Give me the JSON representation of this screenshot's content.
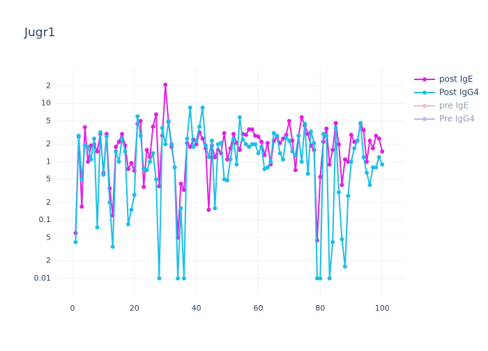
{
  "chart_data": {
    "type": "line",
    "title": "Jugr1",
    "log_y": true,
    "grid": true,
    "legend": "right",
    "x": [
      1,
      2,
      3,
      4,
      5,
      6,
      7,
      8,
      9,
      10,
      11,
      12,
      13,
      14,
      15,
      16,
      17,
      18,
      19,
      20,
      21,
      22,
      23,
      24,
      25,
      26,
      27,
      28,
      29,
      30,
      31,
      32,
      33,
      34,
      35,
      36,
      37,
      38,
      39,
      40,
      41,
      42,
      43,
      44,
      45,
      46,
      47,
      48,
      49,
      50,
      51,
      52,
      53,
      54,
      55,
      56,
      57,
      58,
      59,
      60,
      61,
      62,
      63,
      64,
      65,
      66,
      67,
      68,
      69,
      70,
      71,
      72,
      73,
      74,
      75,
      76,
      77,
      78,
      79,
      80,
      81,
      82,
      83,
      84,
      85,
      86,
      87,
      88,
      89,
      90,
      91,
      92,
      93,
      94,
      95,
      96,
      97,
      98,
      99,
      100
    ],
    "series": [
      {
        "name": "post IgE",
        "color": "#e31fe3",
        "values": [
          0.06,
          2.7,
          0.17,
          3.9,
          1.0,
          1.9,
          2.0,
          1.5,
          3.0,
          0.65,
          3.0,
          0.35,
          0.12,
          1.8,
          2.2,
          3.0,
          1.9,
          0.75,
          0.95,
          0.7,
          4.5,
          5.0,
          0.37,
          1.6,
          1.2,
          4.0,
          6.5,
          0.38,
          2.8,
          21,
          4.8,
          1.8,
          0.8,
          0.05,
          0.42,
          0.33,
          2.1,
          1.8,
          2.4,
          2.0,
          3.2,
          2.5,
          1.7,
          0.15,
          1.9,
          1.2,
          1.6,
          1.4,
          3.1,
          1.1,
          1.7,
          3.0,
          2.1,
          1.6,
          3.0,
          2.9,
          3.6,
          3.6,
          2.8,
          2.7,
          2.2,
          1.3,
          2.1,
          0.9,
          2.3,
          2.6,
          2.1,
          2.5,
          2.9,
          5.0,
          2.3,
          0.72,
          2.8,
          5.8,
          4.2,
          3.0,
          1.9,
          1.6,
          0.045,
          0.55,
          2.2,
          3.7,
          0.9,
          1.6,
          4.6,
          2.0,
          0.4,
          1.1,
          1.0,
          2.9,
          2.2,
          2.3,
          4.5,
          3.5,
          1.0,
          2.3,
          1.7,
          2.8,
          2.5,
          1.5
        ]
      },
      {
        "name": "Post IgG4",
        "color": "#1cbfe6",
        "values": [
          0.042,
          2.8,
          0.5,
          1.9,
          1.8,
          1.1,
          2.5,
          0.075,
          3.2,
          0.6,
          2.7,
          0.2,
          0.035,
          1.5,
          1.0,
          2.5,
          1.5,
          0.085,
          0.15,
          0.27,
          6.0,
          2.8,
          0.75,
          0.72,
          1.0,
          1.4,
          0.5,
          0.01,
          3.8,
          2.0,
          5.0,
          2.0,
          0.8,
          0.01,
          0.16,
          0.01,
          2.5,
          8.5,
          1.8,
          2.3,
          4.0,
          8.5,
          1.9,
          1.2,
          2.3,
          0.16,
          2.0,
          2.1,
          0.5,
          0.48,
          1.1,
          2.5,
          0.9,
          5.8,
          2.4,
          2.0,
          1.8,
          2.0,
          2.0,
          1.4,
          1.8,
          0.75,
          0.8,
          1.0,
          3.1,
          2.8,
          1.4,
          1.1,
          2.6,
          2.3,
          1.5,
          1.3,
          2.8,
          1.0,
          4.5,
          0.62,
          3.3,
          2.1,
          0.01,
          0.01,
          3.0,
          2.8,
          0.01,
          0.042,
          3.8,
          0.3,
          0.047,
          0.016,
          0.26,
          1.0,
          1.7,
          2.3,
          4.6,
          1.2,
          0.65,
          0.4,
          0.8,
          0.8,
          1.2,
          0.9
        ]
      },
      {
        "name": "pre IgE",
        "color": "#f0788c",
        "visible": false
      },
      {
        "name": "Pre IgG4",
        "color": "#6f6ff0",
        "visible": false
      }
    ],
    "xlim": [
      -5.4,
      106.7
    ],
    "xticks": [
      0,
      20,
      40,
      60,
      80,
      100
    ],
    "ylim": [
      0.005,
      38
    ],
    "yticks": [
      {
        "value": 20,
        "label": "2"
      },
      10,
      5,
      2,
      1,
      {
        "value": 0.5,
        "label": "5"
      },
      {
        "value": 0.2,
        "label": "2"
      },
      0.1,
      {
        "value": 0.05,
        "label": "5"
      },
      {
        "value": 0.02,
        "label": "2"
      },
      0.01
    ]
  }
}
